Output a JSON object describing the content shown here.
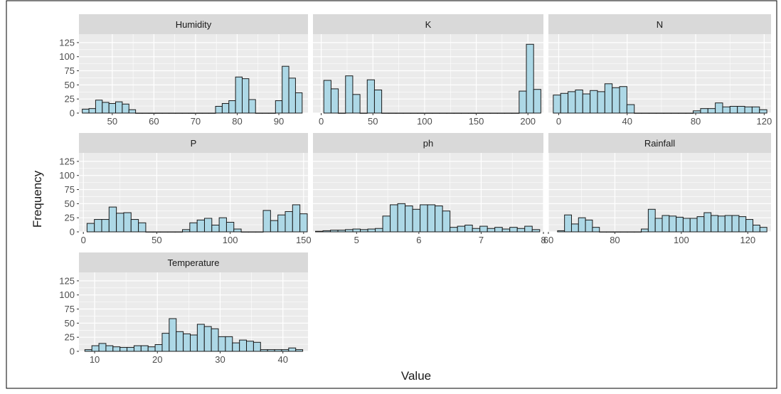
{
  "figure": {
    "xlabel": "Value",
    "ylabel": "Frequency",
    "y_ticks": [
      "125",
      "100",
      "75",
      "50",
      "25",
      "0"
    ]
  },
  "colors": {
    "panel_bg": "#ebebeb",
    "strip_bg": "#d9d9d9",
    "grid": "#ffffff",
    "bar_fill": "#add8e6",
    "bar_stroke": "#1a1a1a",
    "text": "#4d4d4d"
  },
  "chart_data": {
    "type": "bar",
    "grid": true,
    "ylim": [
      0,
      140
    ],
    "yticks": [
      0,
      25,
      50,
      75,
      100,
      125
    ],
    "panels": [
      {
        "title": "Humidity",
        "xlim": [
          42,
          97
        ],
        "xticks": [
          50,
          60,
          70,
          80,
          90
        ],
        "bin_width": 1.6,
        "bins": [
          [
            43.6,
            7
          ],
          [
            45.2,
            8
          ],
          [
            46.8,
            23
          ],
          [
            48.4,
            19
          ],
          [
            50.0,
            17
          ],
          [
            51.6,
            20
          ],
          [
            53.2,
            16
          ],
          [
            54.8,
            6
          ],
          [
            56.4,
            0
          ],
          [
            58.0,
            0
          ],
          [
            59.6,
            0
          ],
          [
            61.2,
            0
          ],
          [
            62.8,
            0
          ],
          [
            64.4,
            0
          ],
          [
            66.0,
            0
          ],
          [
            67.6,
            0
          ],
          [
            69.2,
            0
          ],
          [
            70.8,
            0
          ],
          [
            72.4,
            0
          ],
          [
            74.0,
            0
          ],
          [
            75.6,
            12
          ],
          [
            77.2,
            17
          ],
          [
            78.8,
            22
          ],
          [
            80.4,
            64
          ],
          [
            82.0,
            61
          ],
          [
            83.6,
            24
          ],
          [
            85.2,
            0
          ],
          [
            86.8,
            0
          ],
          [
            88.4,
            0
          ],
          [
            90.0,
            22
          ],
          [
            91.6,
            83
          ],
          [
            93.2,
            62
          ],
          [
            94.8,
            36
          ]
        ]
      },
      {
        "title": "K",
        "xlim": [
          -8,
          215
        ],
        "xticks": [
          0,
          50,
          100,
          150,
          200
        ],
        "bin_width": 7,
        "bins": [
          [
            6,
            58
          ],
          [
            13,
            43
          ],
          [
            20,
            0
          ],
          [
            27,
            66
          ],
          [
            34,
            33
          ],
          [
            41,
            0
          ],
          [
            48,
            59
          ],
          [
            55,
            41
          ],
          [
            62,
            0
          ],
          [
            69,
            0
          ],
          [
            76,
            0
          ],
          [
            83,
            0
          ],
          [
            90,
            0
          ],
          [
            97,
            0
          ],
          [
            104,
            0
          ],
          [
            111,
            0
          ],
          [
            118,
            0
          ],
          [
            125,
            0
          ],
          [
            132,
            0
          ],
          [
            139,
            0
          ],
          [
            146,
            0
          ],
          [
            153,
            0
          ],
          [
            160,
            0
          ],
          [
            167,
            0
          ],
          [
            174,
            0
          ],
          [
            181,
            0
          ],
          [
            188,
            0
          ],
          [
            195,
            39
          ],
          [
            202,
            122
          ],
          [
            209,
            42
          ]
        ]
      },
      {
        "title": "N",
        "xlim": [
          -6,
          124
        ],
        "xticks": [
          0,
          40,
          80,
          120
        ],
        "bin_width": 4.3,
        "bins": [
          [
            -1,
            32
          ],
          [
            3.3,
            35
          ],
          [
            7.6,
            38
          ],
          [
            11.9,
            41
          ],
          [
            16.2,
            34
          ],
          [
            20.5,
            40
          ],
          [
            24.8,
            38
          ],
          [
            29.1,
            52
          ],
          [
            33.4,
            45
          ],
          [
            37.7,
            47
          ],
          [
            42,
            15
          ],
          [
            46.3,
            0
          ],
          [
            50.6,
            0
          ],
          [
            54.9,
            0
          ],
          [
            59.2,
            0
          ],
          [
            63.5,
            0
          ],
          [
            67.8,
            0
          ],
          [
            72.1,
            0
          ],
          [
            76.4,
            0
          ],
          [
            80.7,
            4
          ],
          [
            85,
            8
          ],
          [
            89.3,
            8
          ],
          [
            93.6,
            18
          ],
          [
            97.9,
            11
          ],
          [
            102.2,
            12
          ],
          [
            106.5,
            12
          ],
          [
            110.8,
            11
          ],
          [
            115.1,
            11
          ],
          [
            119.4,
            6
          ]
        ]
      },
      {
        "title": "P",
        "xlim": [
          -3,
          153
        ],
        "xticks": [
          0,
          50,
          100,
          150
        ],
        "bin_width": 5,
        "bins": [
          [
            5,
            15
          ],
          [
            10,
            22
          ],
          [
            15,
            22
          ],
          [
            20,
            44
          ],
          [
            25,
            33
          ],
          [
            30,
            34
          ],
          [
            35,
            22
          ],
          [
            40,
            16
          ],
          [
            45,
            0
          ],
          [
            50,
            0
          ],
          [
            55,
            0
          ],
          [
            60,
            0
          ],
          [
            65,
            0
          ],
          [
            70,
            4
          ],
          [
            75,
            16
          ],
          [
            80,
            21
          ],
          [
            85,
            24
          ],
          [
            90,
            12
          ],
          [
            95,
            25
          ],
          [
            100,
            17
          ],
          [
            105,
            5
          ],
          [
            110,
            0
          ],
          [
            115,
            0
          ],
          [
            120,
            0
          ],
          [
            125,
            38
          ],
          [
            130,
            20
          ],
          [
            135,
            30
          ],
          [
            140,
            36
          ],
          [
            145,
            48
          ],
          [
            150,
            32
          ]
        ]
      },
      {
        "title": "ph",
        "xlim": [
          4.3,
          8.0
        ],
        "xticks": [
          5,
          6,
          7,
          8
        ],
        "bin_width": 0.12,
        "bins": [
          [
            4.4,
            1
          ],
          [
            4.52,
            2
          ],
          [
            4.64,
            3
          ],
          [
            4.76,
            3
          ],
          [
            4.88,
            4
          ],
          [
            5.0,
            5
          ],
          [
            5.12,
            4
          ],
          [
            5.24,
            5
          ],
          [
            5.36,
            6
          ],
          [
            5.48,
            28
          ],
          [
            5.6,
            48
          ],
          [
            5.72,
            50
          ],
          [
            5.84,
            46
          ],
          [
            5.96,
            40
          ],
          [
            6.08,
            48
          ],
          [
            6.2,
            48
          ],
          [
            6.32,
            46
          ],
          [
            6.44,
            37
          ],
          [
            6.56,
            8
          ],
          [
            6.68,
            10
          ],
          [
            6.8,
            12
          ],
          [
            6.92,
            6
          ],
          [
            7.04,
            10
          ],
          [
            7.16,
            6
          ],
          [
            7.28,
            8
          ],
          [
            7.4,
            5
          ],
          [
            7.52,
            8
          ],
          [
            7.64,
            6
          ],
          [
            7.76,
            10
          ],
          [
            7.88,
            4
          ]
        ]
      },
      {
        "title": "Rainfall",
        "xlim": [
          60,
          127
        ],
        "xticks": [
          60,
          80,
          100,
          120
        ],
        "bin_width": 2.1,
        "bins": [
          [
            63.8,
            2
          ],
          [
            65.9,
            30
          ],
          [
            68.0,
            14
          ],
          [
            70.1,
            25
          ],
          [
            72.2,
            21
          ],
          [
            74.3,
            8
          ],
          [
            76.4,
            0
          ],
          [
            78.5,
            0
          ],
          [
            80.6,
            0
          ],
          [
            82.7,
            0
          ],
          [
            84.8,
            0
          ],
          [
            86.9,
            0
          ],
          [
            89.0,
            5
          ],
          [
            91.1,
            40
          ],
          [
            93.2,
            24
          ],
          [
            95.3,
            29
          ],
          [
            97.4,
            28
          ],
          [
            99.5,
            26
          ],
          [
            101.6,
            24
          ],
          [
            103.7,
            24
          ],
          [
            105.8,
            27
          ],
          [
            107.9,
            34
          ],
          [
            110.0,
            29
          ],
          [
            112.1,
            28
          ],
          [
            114.2,
            29
          ],
          [
            116.3,
            29
          ],
          [
            118.4,
            27
          ],
          [
            120.5,
            22
          ],
          [
            122.6,
            12
          ],
          [
            124.7,
            8
          ]
        ]
      },
      {
        "title": "Temperature",
        "xlim": [
          7.5,
          44
        ],
        "xticks": [
          10,
          20,
          30,
          40
        ],
        "bin_width": 1.12,
        "bins": [
          [
            9,
            3
          ],
          [
            10.12,
            10
          ],
          [
            11.24,
            14
          ],
          [
            12.36,
            10
          ],
          [
            13.48,
            8
          ],
          [
            14.6,
            7
          ],
          [
            15.72,
            7
          ],
          [
            16.84,
            10
          ],
          [
            17.96,
            10
          ],
          [
            19.08,
            8
          ],
          [
            20.2,
            12
          ],
          [
            21.32,
            32
          ],
          [
            22.44,
            58
          ],
          [
            23.56,
            35
          ],
          [
            24.68,
            31
          ],
          [
            25.8,
            29
          ],
          [
            26.92,
            48
          ],
          [
            28.04,
            44
          ],
          [
            29.16,
            40
          ],
          [
            30.28,
            26
          ],
          [
            31.4,
            26
          ],
          [
            32.52,
            15
          ],
          [
            33.64,
            20
          ],
          [
            34.76,
            18
          ],
          [
            35.88,
            16
          ],
          [
            37.0,
            3
          ],
          [
            38.12,
            3
          ],
          [
            39.24,
            3
          ],
          [
            40.36,
            3
          ],
          [
            41.48,
            6
          ],
          [
            42.6,
            3
          ]
        ]
      }
    ]
  }
}
